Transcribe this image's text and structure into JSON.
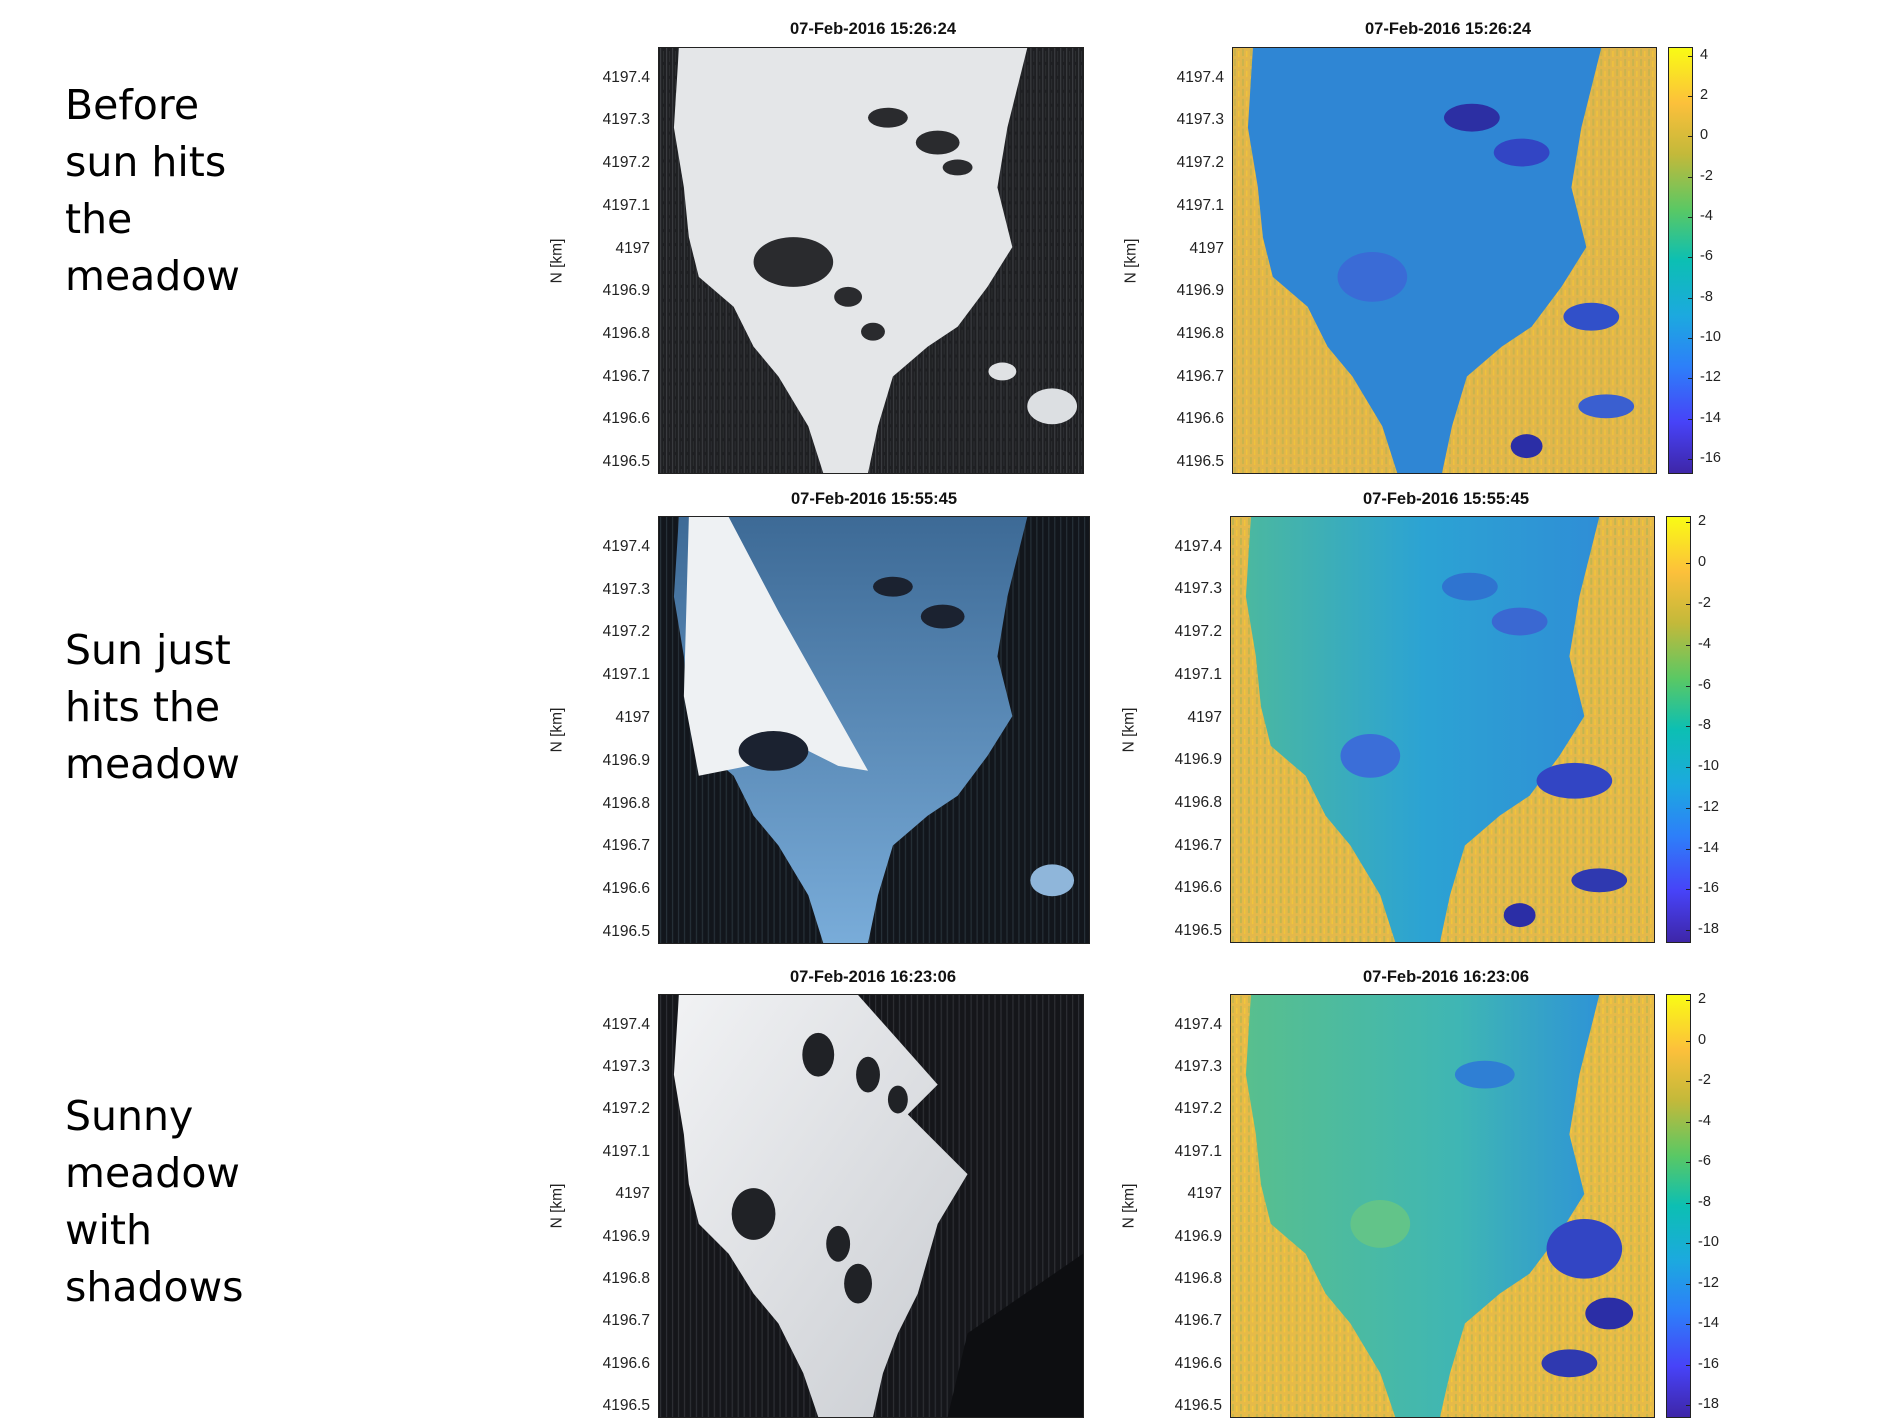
{
  "rows": [
    {
      "label_lines": [
        "Before",
        "sun hits",
        "the",
        "meadow"
      ],
      "photo_title": "07-Feb-2016 15:26:24",
      "map_title": "07-Feb-2016 15:26:24",
      "colorbar_ticks": [
        "4",
        "2",
        "0",
        "-2",
        "-4",
        "-6",
        "-8",
        "-10",
        "-12",
        "-14",
        "-16"
      ],
      "photo_style": "before"
    },
    {
      "label_lines": [
        "Sun just",
        "hits the",
        "meadow"
      ],
      "photo_title": "07-Feb-2016 15:55:45",
      "map_title": "07-Feb-2016 15:55:45",
      "colorbar_ticks": [
        "2",
        "0",
        "-2",
        "-4",
        "-6",
        "-8",
        "-10",
        "-12",
        "-14",
        "-16",
        "-18"
      ],
      "photo_style": "sunhit"
    },
    {
      "label_lines": [
        "Sunny",
        "meadow",
        "with",
        "shadows"
      ],
      "photo_title": "07-Feb-2016 16:23:06",
      "map_title": "07-Feb-2016 16:23:06",
      "colorbar_ticks": [
        "2",
        "0",
        "-2",
        "-4",
        "-6",
        "-8",
        "-10",
        "-12",
        "-14",
        "-16",
        "-18"
      ],
      "photo_style": "sunny"
    }
  ],
  "y_axis_label": "N [km]",
  "y_ticks": [
    "4197.4",
    "4197.3",
    "4197.2",
    "4197.1",
    "4197",
    "4196.9",
    "4196.8",
    "4196.7",
    "4196.6",
    "4196.5"
  ],
  "colors": {
    "forest": "#1c1d20",
    "snow": "#e6e8ea",
    "shadow_blue": "#5d8fc4",
    "map_warm": "#e6b84a",
    "map_cool": "#2c8fd8",
    "map_dark": "#2b2ea6"
  }
}
